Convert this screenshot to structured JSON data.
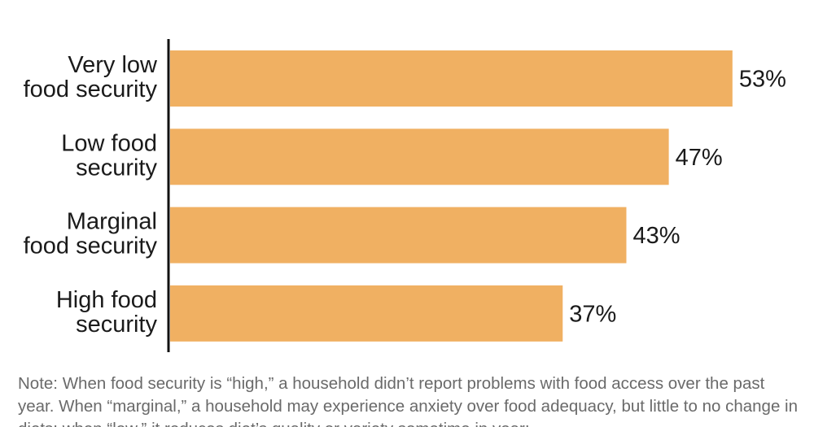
{
  "chart_data": {
    "type": "bar",
    "orientation": "horizontal",
    "categories": [
      [
        "Very low",
        "food security"
      ],
      [
        "Low food",
        "security"
      ],
      [
        "Marginal",
        "food security"
      ],
      [
        "High food",
        "security"
      ]
    ],
    "values": [
      53,
      47,
      43,
      37
    ],
    "value_labels": [
      "53%",
      "47%",
      "43%",
      "37%"
    ],
    "bar_color": "#f0b062",
    "xlim": [
      0,
      58
    ],
    "grid": false
  },
  "note": "Note: When food security is “high,” a household didn’t report problems with food access over the past year. When “marginal,” a household may experience anxiety over food adequacy, but little to no change in diets; when “low,” it reduces diet’s quality or variety sometime in year;"
}
